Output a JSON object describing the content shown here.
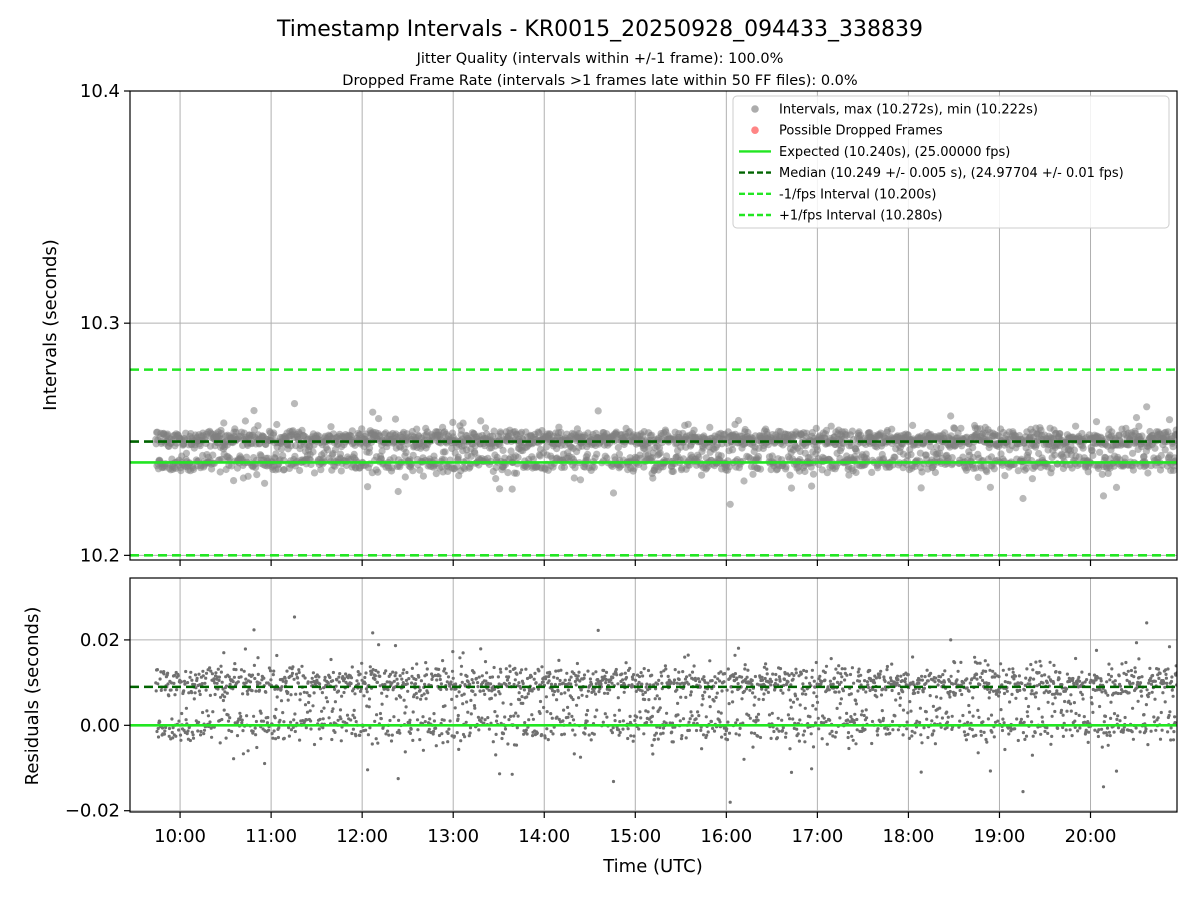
{
  "chart_data": [
    {
      "type": "scatter",
      "panel": "intervals",
      "title": "Timestamp Intervals - KR0015_20250928_094433_338839",
      "subtitle_lines": [
        "Jitter Quality (intervals within +/-1 frame): 100.0%",
        "Dropped Frame Rate (intervals >1 frames late within 50 FF files): 0.0%"
      ],
      "ylabel": "Intervals (seconds)",
      "xlabel": "",
      "xlim": [
        "09:27",
        "20:57"
      ],
      "ylim": [
        10.198,
        10.4
      ],
      "yticks": [
        "10.2",
        "10.3",
        "10.4"
      ],
      "ytick_values": [
        10.2,
        10.3,
        10.4
      ],
      "xtick_values": [
        "10:00",
        "11:00",
        "12:00",
        "13:00",
        "14:00",
        "15:00",
        "16:00",
        "17:00",
        "18:00",
        "19:00",
        "20:00"
      ],
      "grid": true,
      "legend_position": "top-right",
      "legend": [
        {
          "label": "Intervals, max (10.272s), min (10.222s)",
          "kind": "marker",
          "color": "#808080"
        },
        {
          "label": "Possible Dropped Frames",
          "kind": "marker",
          "color": "#ff4444"
        },
        {
          "label": "Expected (10.240s), (25.00000 fps)",
          "kind": "line-solid",
          "color": "#22e622"
        },
        {
          "label": "Median (10.249 +/- 0.005 s), (24.97704 +/- 0.01 fps)",
          "kind": "line-dashed",
          "color": "#006400"
        },
        {
          "label": "-1/fps Interval (10.200s)",
          "kind": "line-dashed",
          "color": "#22e622"
        },
        {
          "label": "+1/fps Interval (10.280s)",
          "kind": "line-dashed",
          "color": "#22e622"
        }
      ],
      "reference_lines": {
        "expected": 10.24,
        "median": 10.249,
        "minus_one_fps": 10.2,
        "plus_one_fps": 10.28
      },
      "series": [
        {
          "kind": "scatter",
          "color": "#808080",
          "time_range": [
            "09:44",
            "20:57"
          ],
          "clusters": [
            {
              "center": 10.25,
              "spread": 0.002,
              "weight": 0.6
            },
            {
              "center": 10.24,
              "spread": 0.002,
              "weight": 0.32
            },
            {
              "center": 10.245,
              "spread": 0.008,
              "weight": 0.08
            }
          ],
          "max": 10.272,
          "min": 10.222
        }
      ]
    },
    {
      "type": "scatter",
      "panel": "residuals",
      "ylabel": "Residuals (seconds)",
      "xlabel": "Time (UTC)",
      "xlim": [
        "09:27",
        "20:57"
      ],
      "ylim": [
        -0.0203,
        0.0345
      ],
      "yticks": [
        "0.02",
        "0.00",
        "−0.02"
      ],
      "ytick_values": [
        0.02,
        0.0,
        -0.02
      ],
      "xticks": [
        "10:00",
        "11:00",
        "12:00",
        "13:00",
        "14:00",
        "15:00",
        "16:00",
        "17:00",
        "18:00",
        "19:00",
        "20:00"
      ],
      "grid": true,
      "reference_lines": {
        "zero": 0.0,
        "median_residual": 0.009
      },
      "series": [
        {
          "kind": "scatter",
          "color": "#707070",
          "time_range": [
            "09:44",
            "20:57"
          ],
          "clusters": [
            {
              "center": 0.01,
              "spread": 0.0015,
              "weight": 0.6
            },
            {
              "center": 0.0,
              "spread": 0.0015,
              "weight": 0.3
            },
            {
              "center": 0.005,
              "spread": 0.008,
              "weight": 0.1
            }
          ]
        }
      ]
    }
  ],
  "colors": {
    "grid": "#b0b0b0",
    "axes": "#000000",
    "points": "#808080",
    "expected": "#22e622",
    "median": "#006400"
  }
}
